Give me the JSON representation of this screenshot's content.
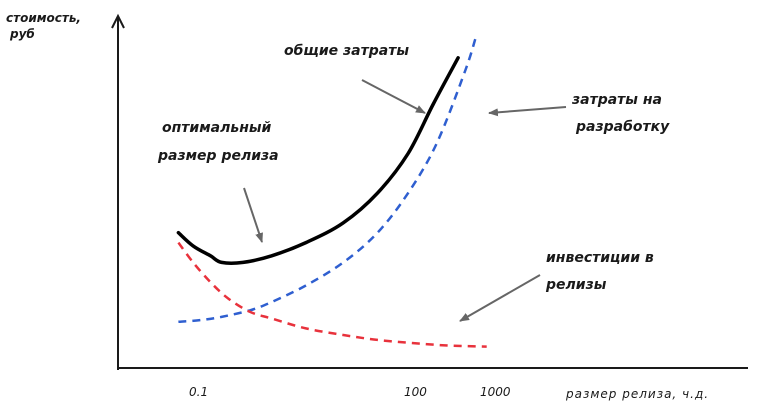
{
  "chart_data": {
    "type": "line",
    "title": "",
    "ylabel": [
      "стоимость,",
      "руб"
    ],
    "xlabel": "размер релиза, ч.д.",
    "x_scale": "log",
    "x_ticks": [
      "0.1",
      "100",
      "1000"
    ],
    "grid": false,
    "legend": "none",
    "series": [
      {
        "label": "общие затраты",
        "style": "solid",
        "color": "#000000",
        "points": [
          [
            0.05,
            0.41
          ],
          [
            0.08,
            0.37
          ],
          [
            0.14,
            0.34
          ],
          [
            0.2,
            0.32
          ],
          [
            0.4,
            0.32
          ],
          [
            1,
            0.34
          ],
          [
            3,
            0.38
          ],
          [
            10,
            0.44
          ],
          [
            30,
            0.53
          ],
          [
            80,
            0.65
          ],
          [
            180,
            0.8
          ],
          [
            400,
            0.94
          ]
        ]
      },
      {
        "label": "затраты на разработку",
        "style": "dashed",
        "color": "#2f5fd0",
        "points": [
          [
            0.05,
            0.14
          ],
          [
            0.1,
            0.145
          ],
          [
            0.2,
            0.155
          ],
          [
            0.5,
            0.175
          ],
          [
            1,
            0.2
          ],
          [
            3,
            0.25
          ],
          [
            10,
            0.32
          ],
          [
            30,
            0.41
          ],
          [
            80,
            0.53
          ],
          [
            200,
            0.68
          ],
          [
            500,
            0.9
          ],
          [
            700,
            1.0
          ]
        ]
      },
      {
        "label": "инвестиции в релизы",
        "style": "dashed",
        "color": "#e8323c",
        "points": [
          [
            0.05,
            0.38
          ],
          [
            0.08,
            0.32
          ],
          [
            0.14,
            0.26
          ],
          [
            0.25,
            0.21
          ],
          [
            0.5,
            0.17
          ],
          [
            1,
            0.15
          ],
          [
            3,
            0.12
          ],
          [
            10,
            0.1
          ],
          [
            30,
            0.085
          ],
          [
            100,
            0.075
          ],
          [
            300,
            0.068
          ],
          [
            1000,
            0.065
          ]
        ]
      }
    ],
    "annotations": [
      {
        "text": [
          "общие затраты"
        ],
        "target": "общие затраты"
      },
      {
        "text": [
          "затраты на",
          "разработку"
        ],
        "target": "затраты на разработку"
      },
      {
        "text": [
          "оптимальный",
          "размер релиза"
        ],
        "target": "optimum"
      },
      {
        "text": [
          "инвестиции в",
          "релизы"
        ],
        "target": "инвестиции в релизы"
      }
    ]
  }
}
